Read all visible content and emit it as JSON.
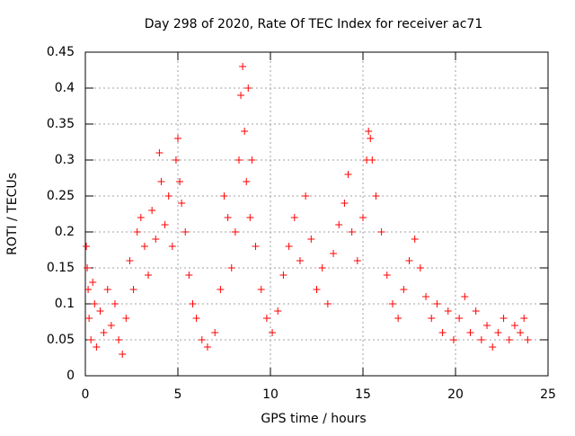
{
  "chart_data": {
    "type": "scatter",
    "title": "Day 298 of 2020, Rate Of TEC Index for receiver ac71",
    "xlabel": "GPS time / hours",
    "ylabel": "ROTI / TECUs",
    "xlim": [
      0,
      25
    ],
    "ylim": [
      0,
      0.45
    ],
    "x_ticks": [
      "0",
      "5",
      "10",
      "15",
      "20",
      "25"
    ],
    "y_ticks": [
      "0",
      "0.05",
      "0.1",
      "0.15",
      "0.2",
      "0.25",
      "0.3",
      "0.35",
      "0.4",
      "0.45"
    ],
    "grid": true,
    "marker": "+",
    "series_color": "#ff0000",
    "series": [
      {
        "points": [
          [
            0.05,
            0.18
          ],
          [
            0.1,
            0.15
          ],
          [
            0.15,
            0.12
          ],
          [
            0.2,
            0.08
          ],
          [
            0.3,
            0.05
          ],
          [
            0.4,
            0.13
          ],
          [
            0.5,
            0.1
          ],
          [
            0.6,
            0.04
          ],
          [
            0.8,
            0.09
          ],
          [
            1.0,
            0.06
          ],
          [
            1.2,
            0.12
          ],
          [
            1.4,
            0.07
          ],
          [
            1.6,
            0.1
          ],
          [
            1.8,
            0.05
          ],
          [
            2.0,
            0.03
          ],
          [
            2.2,
            0.08
          ],
          [
            2.4,
            0.16
          ],
          [
            2.6,
            0.12
          ],
          [
            2.8,
            0.2
          ],
          [
            3.0,
            0.22
          ],
          [
            3.2,
            0.18
          ],
          [
            3.4,
            0.14
          ],
          [
            3.6,
            0.23
          ],
          [
            3.8,
            0.19
          ],
          [
            4.0,
            0.31
          ],
          [
            4.1,
            0.27
          ],
          [
            4.3,
            0.21
          ],
          [
            4.5,
            0.25
          ],
          [
            4.7,
            0.18
          ],
          [
            4.9,
            0.3
          ],
          [
            5.0,
            0.33
          ],
          [
            5.1,
            0.27
          ],
          [
            5.2,
            0.24
          ],
          [
            5.4,
            0.2
          ],
          [
            5.6,
            0.14
          ],
          [
            5.8,
            0.1
          ],
          [
            6.0,
            0.08
          ],
          [
            6.3,
            0.05
          ],
          [
            6.6,
            0.04
          ],
          [
            7.0,
            0.06
          ],
          [
            7.3,
            0.12
          ],
          [
            7.5,
            0.25
          ],
          [
            7.7,
            0.22
          ],
          [
            7.9,
            0.15
          ],
          [
            8.1,
            0.2
          ],
          [
            8.3,
            0.3
          ],
          [
            8.4,
            0.39
          ],
          [
            8.5,
            0.43
          ],
          [
            8.6,
            0.34
          ],
          [
            8.7,
            0.27
          ],
          [
            8.8,
            0.4
          ],
          [
            8.9,
            0.22
          ],
          [
            9.0,
            0.3
          ],
          [
            9.2,
            0.18
          ],
          [
            9.5,
            0.12
          ],
          [
            9.8,
            0.08
          ],
          [
            10.1,
            0.06
          ],
          [
            10.4,
            0.09
          ],
          [
            10.7,
            0.14
          ],
          [
            11.0,
            0.18
          ],
          [
            11.3,
            0.22
          ],
          [
            11.6,
            0.16
          ],
          [
            11.9,
            0.25
          ],
          [
            12.2,
            0.19
          ],
          [
            12.5,
            0.12
          ],
          [
            12.8,
            0.15
          ],
          [
            13.1,
            0.1
          ],
          [
            13.4,
            0.17
          ],
          [
            13.7,
            0.21
          ],
          [
            14.0,
            0.24
          ],
          [
            14.2,
            0.28
          ],
          [
            14.4,
            0.2
          ],
          [
            14.7,
            0.16
          ],
          [
            15.0,
            0.22
          ],
          [
            15.2,
            0.3
          ],
          [
            15.3,
            0.34
          ],
          [
            15.4,
            0.33
          ],
          [
            15.5,
            0.3
          ],
          [
            15.7,
            0.25
          ],
          [
            16.0,
            0.2
          ],
          [
            16.3,
            0.14
          ],
          [
            16.6,
            0.1
          ],
          [
            16.9,
            0.08
          ],
          [
            17.2,
            0.12
          ],
          [
            17.5,
            0.16
          ],
          [
            17.8,
            0.19
          ],
          [
            18.1,
            0.15
          ],
          [
            18.4,
            0.11
          ],
          [
            18.7,
            0.08
          ],
          [
            19.0,
            0.1
          ],
          [
            19.3,
            0.06
          ],
          [
            19.6,
            0.09
          ],
          [
            19.9,
            0.05
          ],
          [
            20.2,
            0.08
          ],
          [
            20.5,
            0.11
          ],
          [
            20.8,
            0.06
          ],
          [
            21.1,
            0.09
          ],
          [
            21.4,
            0.05
          ],
          [
            21.7,
            0.07
          ],
          [
            22.0,
            0.04
          ],
          [
            22.3,
            0.06
          ],
          [
            22.6,
            0.08
          ],
          [
            22.9,
            0.05
          ],
          [
            23.2,
            0.07
          ],
          [
            23.5,
            0.06
          ],
          [
            23.7,
            0.08
          ],
          [
            23.9,
            0.05
          ]
        ]
      }
    ]
  }
}
